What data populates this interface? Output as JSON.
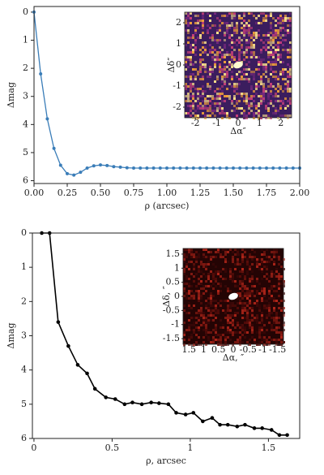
{
  "chart_data": [
    {
      "type": "line",
      "xlabel": "ρ (arcsec)",
      "ylabel": "Δmag",
      "color": "#3a7db8",
      "x": [
        0,
        0.05,
        0.1,
        0.15,
        0.2,
        0.25,
        0.3,
        0.35,
        0.4,
        0.45,
        0.5,
        0.55,
        0.6,
        0.65,
        0.7,
        0.75,
        0.8,
        0.85,
        0.9,
        0.95,
        1.0,
        1.05,
        1.1,
        1.15,
        1.2,
        1.25,
        1.3,
        1.35,
        1.4,
        1.45,
        1.5,
        1.55,
        1.6,
        1.65,
        1.7,
        1.75,
        1.8,
        1.85,
        1.9,
        1.95,
        2.0
      ],
      "values": [
        0,
        2.2,
        3.8,
        4.85,
        5.45,
        5.75,
        5.8,
        5.7,
        5.55,
        5.47,
        5.44,
        5.46,
        5.5,
        5.52,
        5.54,
        5.55,
        5.55,
        5.55,
        5.55,
        5.55,
        5.55,
        5.55,
        5.55,
        5.55,
        5.55,
        5.55,
        5.55,
        5.55,
        5.55,
        5.55,
        5.55,
        5.55,
        5.55,
        5.55,
        5.55,
        5.55,
        5.55,
        5.55,
        5.55,
        5.55,
        5.55
      ],
      "xlim": [
        0,
        2
      ],
      "ylim": [
        6.1,
        -0.2
      ],
      "xticks": [
        {
          "value": 0,
          "label": "0.00"
        },
        {
          "value": 0.25,
          "label": "0.25"
        },
        {
          "value": 0.5,
          "label": "0.50"
        },
        {
          "value": 0.75,
          "label": "0.75"
        },
        {
          "value": 1,
          "label": "1.00"
        },
        {
          "value": 1.25,
          "label": "1.25"
        },
        {
          "value": 1.5,
          "label": "1.50"
        },
        {
          "value": 1.75,
          "label": "1.75"
        },
        {
          "value": 2,
          "label": "2.00"
        }
      ],
      "yticks": [
        0,
        1,
        2,
        3,
        4,
        5,
        6
      ],
      "inset": {
        "xlabel": "Δα″",
        "ylabel": "Δδ″",
        "xlim": [
          -2.5,
          2.5
        ],
        "ylim": [
          -2.5,
          2.5
        ],
        "xticks": [
          -2,
          -1,
          0,
          1,
          2
        ],
        "yticks": [
          -2,
          -1,
          0,
          1,
          2
        ]
      }
    },
    {
      "type": "line",
      "xlabel": "ρ, arcsec",
      "ylabel": "Δmag",
      "color": "#000000",
      "x": [
        0.05,
        0.1,
        0.155,
        0.22,
        0.28,
        0.34,
        0.39,
        0.46,
        0.52,
        0.58,
        0.63,
        0.69,
        0.75,
        0.8,
        0.86,
        0.91,
        0.97,
        1.02,
        1.08,
        1.14,
        1.19,
        1.24,
        1.3,
        1.35,
        1.41,
        1.46,
        1.52,
        1.57,
        1.62
      ],
      "values": [
        0,
        0,
        2.6,
        3.3,
        3.85,
        4.1,
        4.55,
        4.8,
        4.85,
        5.0,
        4.95,
        5.0,
        4.95,
        4.97,
        5.0,
        5.25,
        5.3,
        5.25,
        5.5,
        5.4,
        5.6,
        5.6,
        5.65,
        5.6,
        5.7,
        5.7,
        5.75,
        5.9,
        5.9
      ],
      "xlim": [
        -0.01,
        1.7
      ],
      "ylim": [
        6,
        0
      ],
      "xticks": [
        0,
        0.5,
        1,
        1.5
      ],
      "yticks": [
        0,
        1,
        2,
        3,
        4,
        5,
        6
      ],
      "inset": {
        "xlabel": "Δα, ″",
        "ylabel": "Δδ, ″",
        "xlim": [
          1.7,
          -1.7
        ],
        "ylim": [
          -1.7,
          1.7
        ],
        "xticks": [
          1.5,
          1,
          0.5,
          0,
          -0.5,
          -1,
          -1.5
        ],
        "yticks": [
          1.5,
          1,
          0.5,
          0,
          -0.5,
          -1,
          -1.5
        ]
      }
    }
  ]
}
